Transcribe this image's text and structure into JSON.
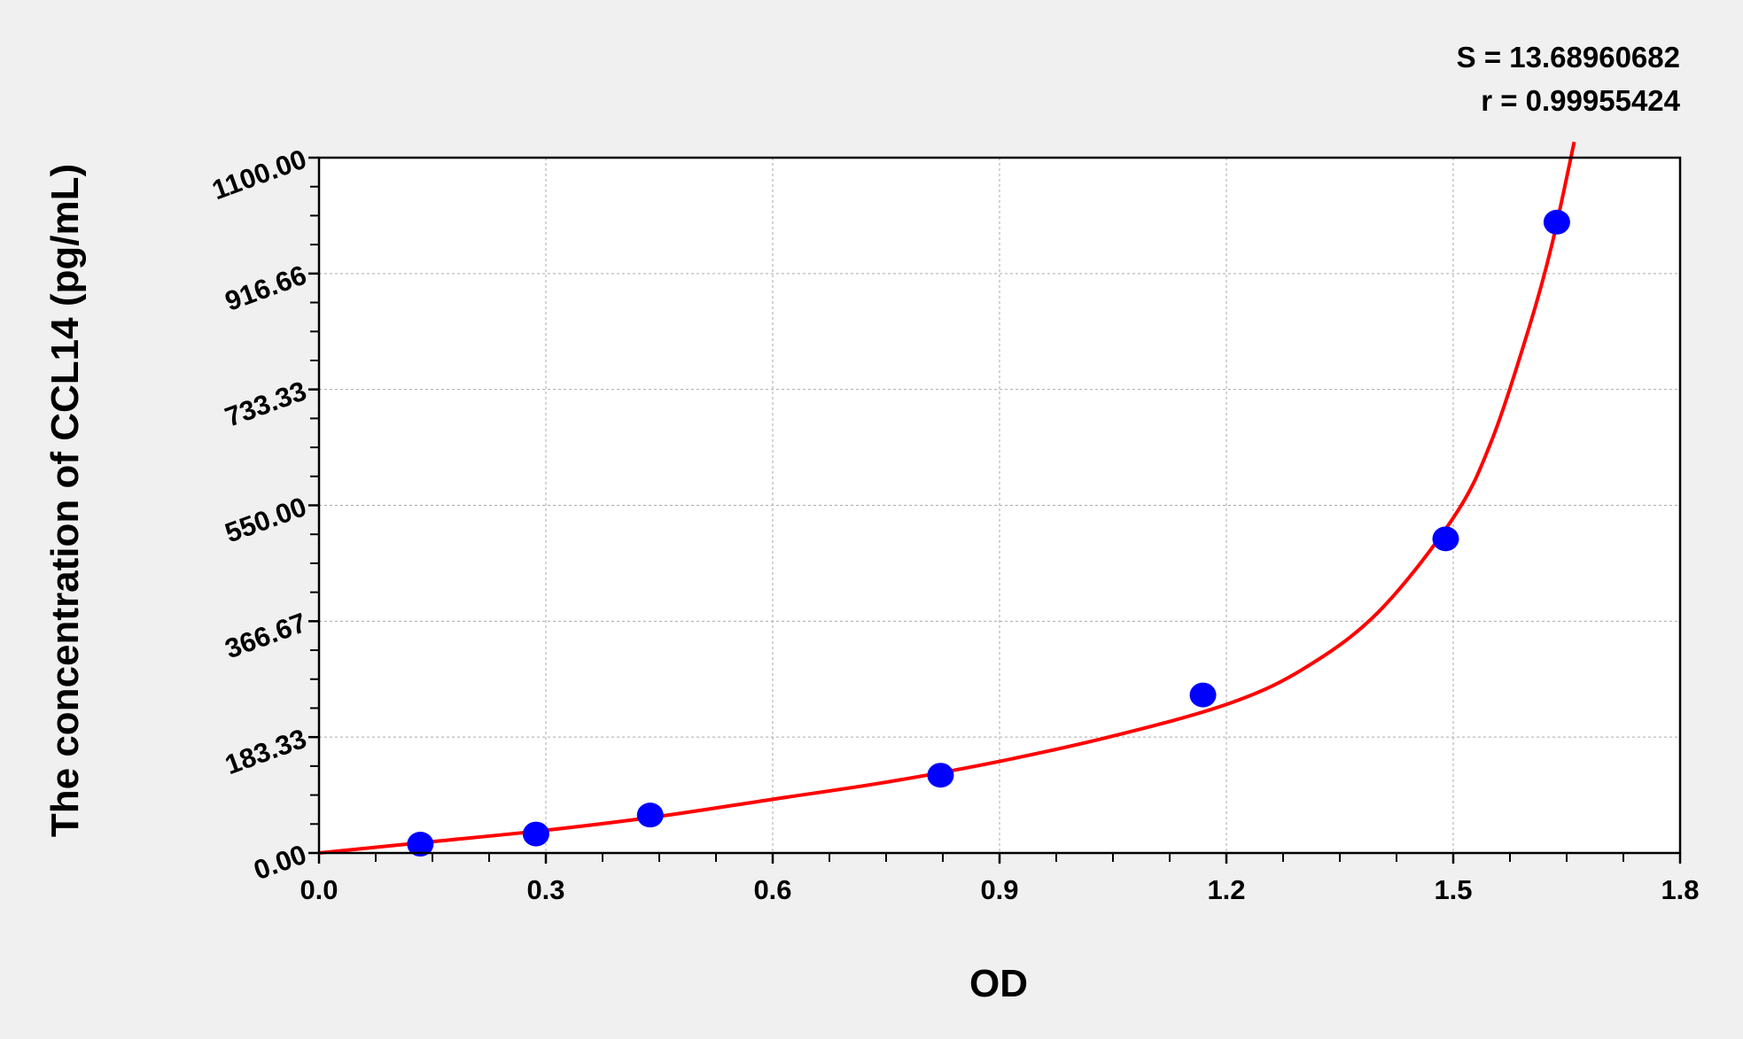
{
  "chart_data": {
    "type": "scatter",
    "title": "",
    "xlabel": "OD",
    "ylabel": "The concentration of CCL14 (pg/mL)",
    "xlim": [
      0.0,
      1.8
    ],
    "ylim": [
      0.0,
      1100.0
    ],
    "x_ticks": [
      "0.0",
      "0.3",
      "0.6",
      "0.9",
      "1.2",
      "1.5",
      "1.8"
    ],
    "y_ticks": [
      "0.00",
      "183.33",
      "366.67",
      "550.00",
      "733.33",
      "916.66",
      "1100.00"
    ],
    "grid": true,
    "annotations": [
      "S = 13.68960682",
      "r = 0.99955424"
    ],
    "series": [
      {
        "type": "scatter",
        "color": "#0000ff",
        "x": [
          0.134,
          0.287,
          0.438,
          0.822,
          1.169,
          1.49,
          1.637
        ],
        "y": [
          14,
          30,
          60,
          123,
          250,
          497,
          998
        ]
      },
      {
        "type": "line",
        "color": "#ff0000",
        "x": [
          0.0,
          0.15,
          0.3,
          0.45,
          0.6,
          0.75,
          0.9,
          1.05,
          1.2,
          1.3,
          1.4,
          1.5,
          1.55,
          1.6,
          1.63,
          1.66
        ],
        "y": [
          0,
          18,
          36,
          58,
          85,
          112,
          145,
          185,
          235,
          290,
          380,
          530,
          650,
          830,
          960,
          1125
        ]
      }
    ]
  }
}
